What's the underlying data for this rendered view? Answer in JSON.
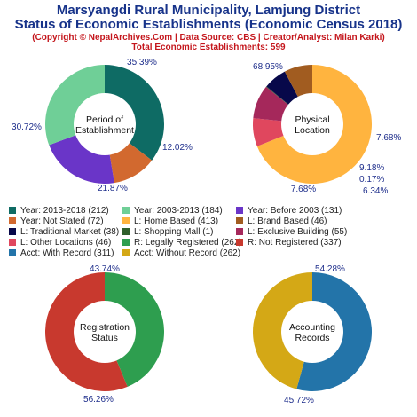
{
  "header": {
    "title_line1": "Marsyangdi Rural Municipality, Lamjung District",
    "title_line2": "Status of Economic Establishments (Economic Census 2018)",
    "subtitle": "(Copyright © NepalArchives.Com | Data Source: CBS | Creator/Analyst: Milan Karki)",
    "total": "Total Economic Establishments: 599"
  },
  "chart_data": [
    {
      "type": "pie",
      "center_label": [
        "Period of",
        "Establishment"
      ],
      "categories": [
        "Year: 2013-2018",
        "Year: Not Stated",
        "Year: Before 2003",
        "Year: 2003-2013"
      ],
      "values": [
        212,
        72,
        131,
        184
      ],
      "colors": [
        "#0e6b64",
        "#d2692f",
        "#6a35c8",
        "#6fcf97"
      ],
      "percent_labels": [
        "35.39%",
        "12.02%",
        "21.87%",
        "30.72%"
      ]
    },
    {
      "type": "pie",
      "center_label": [
        "Physical",
        "Location"
      ],
      "categories": [
        "L: Home Based",
        "L: Other Locations",
        "L: Exclusive Building",
        "L: Shopping Mall",
        "L: Traditional Market",
        "L: Brand Based"
      ],
      "values": [
        413,
        46,
        55,
        1,
        38,
        46
      ],
      "colors": [
        "#ffb43f",
        "#e0475e",
        "#a5285b",
        "#2f5f2b",
        "#07084a",
        "#a15c20"
      ],
      "percent_labels": [
        "68.95%",
        "7.68%",
        "9.18%",
        "0.17%",
        "6.34%",
        "7.68%"
      ]
    },
    {
      "type": "pie",
      "center_label": [
        "Registration",
        "Status"
      ],
      "categories": [
        "R: Legally Registered",
        "R: Not Registered"
      ],
      "values": [
        262,
        337
      ],
      "colors": [
        "#2e9e4f",
        "#c8392e"
      ],
      "percent_labels": [
        "43.74%",
        "56.26%"
      ]
    },
    {
      "type": "pie",
      "center_label": [
        "Accounting",
        "Records"
      ],
      "categories": [
        "Acct: With Record",
        "Acct: Without Record"
      ],
      "values": [
        311,
        262
      ],
      "colors": [
        "#2374a9",
        "#d4a816"
      ],
      "percent_labels": [
        "54.28%",
        "45.72%"
      ]
    }
  ],
  "legend": [
    {
      "label": "Year: 2013-2018 (212)",
      "color": "#0e6b64"
    },
    {
      "label": "Year: 2003-2013 (184)",
      "color": "#6fcf97"
    },
    {
      "label": "Year: Before 2003 (131)",
      "color": "#6a35c8"
    },
    {
      "label": "Year: Not Stated (72)",
      "color": "#d2692f"
    },
    {
      "label": "L: Home Based (413)",
      "color": "#ffb43f"
    },
    {
      "label": "L: Brand Based (46)",
      "color": "#a15c20"
    },
    {
      "label": "L: Traditional Market (38)",
      "color": "#07084a"
    },
    {
      "label": "L: Shopping Mall (1)",
      "color": "#2f5f2b"
    },
    {
      "label": "L: Exclusive Building (55)",
      "color": "#a5285b"
    },
    {
      "label": "L: Other Locations (46)",
      "color": "#e0475e"
    },
    {
      "label": "R: Legally Registered (262)",
      "color": "#2e9e4f"
    },
    {
      "label": "R: Not Registered (337)",
      "color": "#c8392e"
    },
    {
      "label": "Acct: With Record (311)",
      "color": "#2374a9"
    },
    {
      "label": "Acct: Without Record (262)",
      "color": "#d4a816"
    }
  ]
}
